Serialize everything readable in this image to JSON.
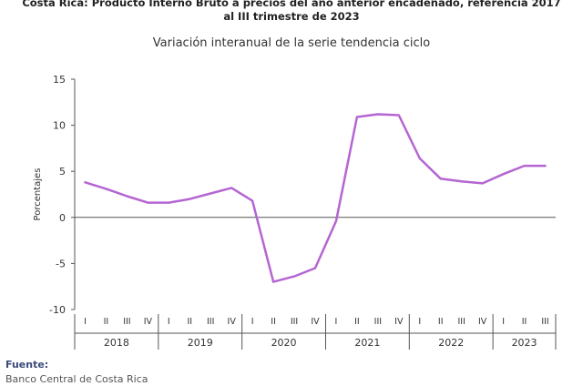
{
  "title_line1": "Costa Rica: Producto Interno Bruto a precios del año anterior encadenado, referencia 2017",
  "title_line2": "al III trimestre de 2023",
  "chart_data": {
    "type": "line",
    "subtitle": "Variación interanual de la serie tendencia ciclo",
    "ylabel": "Porcentajes",
    "ylim": [
      -10,
      15
    ],
    "yticks": [
      -10,
      -5,
      0,
      5,
      10,
      15
    ],
    "grid": false,
    "quarters": [
      "I",
      "II",
      "III",
      "IV",
      "I",
      "II",
      "III",
      "IV",
      "I",
      "II",
      "III",
      "IV",
      "I",
      "II",
      "III",
      "IV",
      "I",
      "II",
      "III",
      "IV",
      "I",
      "II",
      "III"
    ],
    "years": [
      {
        "label": "2018",
        "quarters": 4
      },
      {
        "label": "2019",
        "quarters": 4
      },
      {
        "label": "2020",
        "quarters": 4
      },
      {
        "label": "2021",
        "quarters": 4
      },
      {
        "label": "2022",
        "quarters": 4
      },
      {
        "label": "2023",
        "quarters": 3
      }
    ],
    "series": [
      {
        "color": "#b565d2",
        "values": [
          3.8,
          3.1,
          2.3,
          1.6,
          1.6,
          2.0,
          2.6,
          3.2,
          1.8,
          -7.0,
          -6.4,
          -5.5,
          -0.4,
          10.9,
          11.2,
          11.1,
          6.4,
          4.2,
          3.9,
          3.7,
          4.7,
          5.6,
          5.6
        ]
      }
    ],
    "axis_color": "#555555"
  },
  "source": {
    "label": "Fuente:",
    "text": "Banco Central de Costa Rica"
  }
}
